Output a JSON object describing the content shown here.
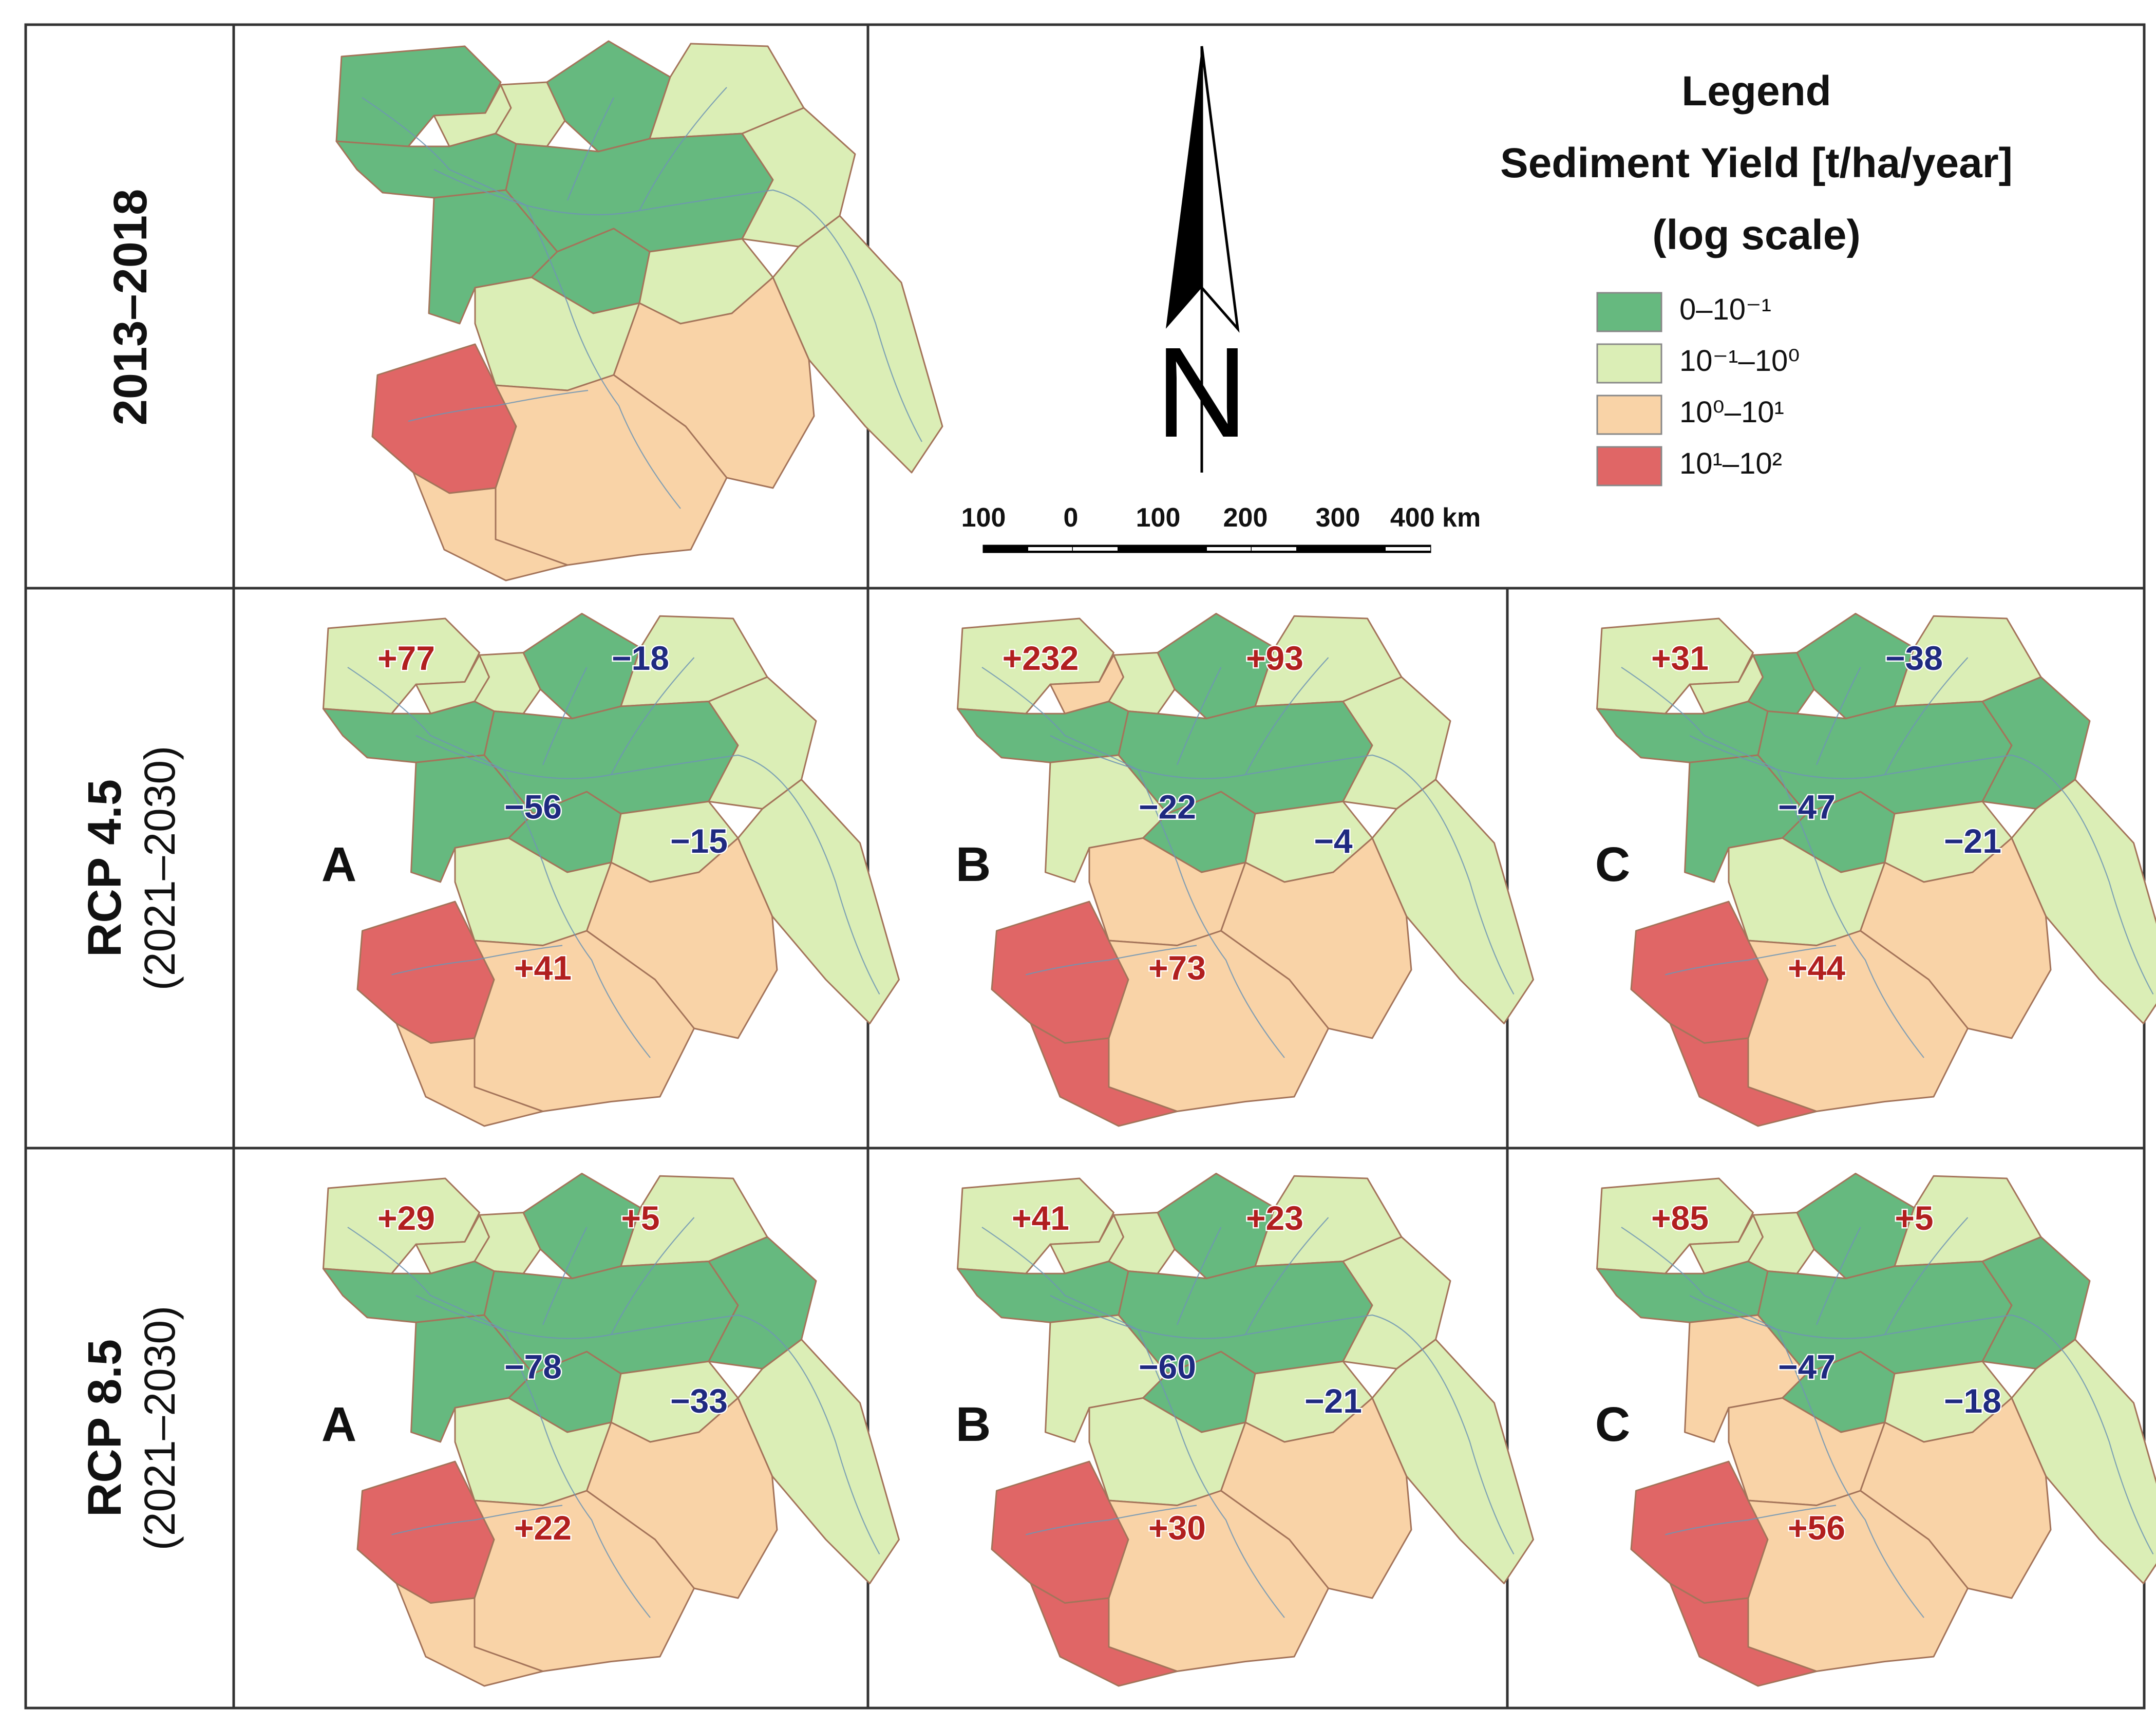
{
  "figure": {
    "row_labels": [
      {
        "line1": "2013–2018",
        "line2": ""
      },
      {
        "line1": "RCP 4.5",
        "line2": "(2021–2030)"
      },
      {
        "line1": "RCP 8.5",
        "line2": "(2021–2030)"
      }
    ],
    "base_map": {},
    "scenarios": [
      {
        "row": 1,
        "model": "A",
        "changes": [
          {
            "key": "nw",
            "text": "+77"
          },
          {
            "key": "ne",
            "text": "−18"
          },
          {
            "key": "c",
            "text": "−56"
          },
          {
            "key": "e",
            "text": "−15"
          },
          {
            "key": "s",
            "text": "+41"
          }
        ]
      },
      {
        "row": 1,
        "model": "B",
        "changes": [
          {
            "key": "nw",
            "text": "+232"
          },
          {
            "key": "ne",
            "text": "+93"
          },
          {
            "key": "c",
            "text": "−22"
          },
          {
            "key": "e",
            "text": "−4"
          },
          {
            "key": "s",
            "text": "+73"
          }
        ]
      },
      {
        "row": 1,
        "model": "C",
        "changes": [
          {
            "key": "nw",
            "text": "+31"
          },
          {
            "key": "ne",
            "text": "−38"
          },
          {
            "key": "c",
            "text": "−47"
          },
          {
            "key": "e",
            "text": "−21"
          },
          {
            "key": "s",
            "text": "+44"
          }
        ]
      },
      {
        "row": 2,
        "model": "A",
        "changes": [
          {
            "key": "nw",
            "text": "+29"
          },
          {
            "key": "ne",
            "text": "+5"
          },
          {
            "key": "c",
            "text": "−78"
          },
          {
            "key": "e",
            "text": "−33"
          },
          {
            "key": "s",
            "text": "+22"
          }
        ]
      },
      {
        "row": 2,
        "model": "B",
        "changes": [
          {
            "key": "nw",
            "text": "+41"
          },
          {
            "key": "ne",
            "text": "+23"
          },
          {
            "key": "c",
            "text": "−60"
          },
          {
            "key": "e",
            "text": "−21"
          },
          {
            "key": "s",
            "text": "+30"
          }
        ]
      },
      {
        "row": 2,
        "model": "C",
        "changes": [
          {
            "key": "nw",
            "text": "+85"
          },
          {
            "key": "ne",
            "text": "+5"
          },
          {
            "key": "c",
            "text": "−47"
          },
          {
            "key": "e",
            "text": "−18"
          },
          {
            "key": "s",
            "text": "+56"
          }
        ]
      }
    ],
    "legend": {
      "title": "Legend",
      "subtitle": "Sediment Yield [t/ha/year]",
      "note": "(log scale)",
      "classes": [
        {
          "label": "0–10⁻¹",
          "color": "#66b97f"
        },
        {
          "label": "10⁻¹–10⁰",
          "color": "#dbeeb6"
        },
        {
          "label": "10⁰–10¹",
          "color": "#f9d3a7"
        },
        {
          "label": "10¹–10²",
          "color": "#e06666"
        }
      ]
    },
    "north_arrow": {
      "label": "N"
    },
    "scale_bar": {
      "ticks": [
        "100",
        "0",
        "100",
        "200",
        "300",
        "400 km"
      ]
    },
    "colors": {
      "increase": "#b11f1f",
      "decrease": "#1f2a80",
      "boundary": "#a4745a",
      "river": "#6f95b4",
      "grid": "#333333"
    }
  }
}
